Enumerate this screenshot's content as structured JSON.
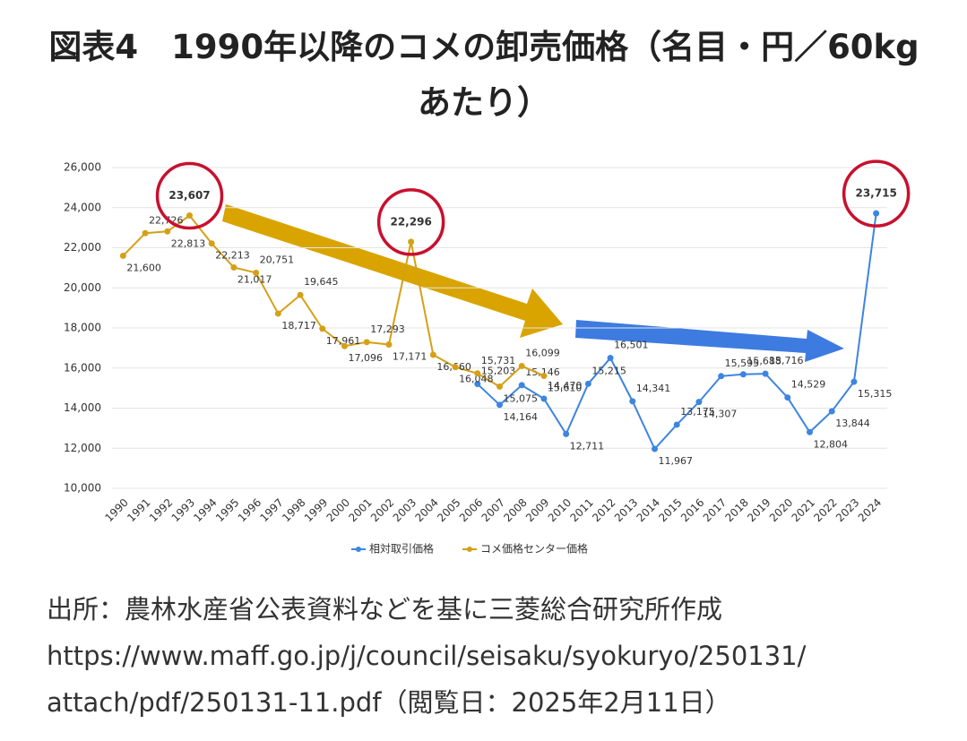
{
  "chart_data": {
    "type": "line",
    "title": "図表4　1990年以降のコメの卸売価格（名目・円／60kgあたり）",
    "source": [
      "出所：農林水産省公表資料などを基に三菱総合研究所作成",
      "https://www.maff.go.jp/j/council/seisaku/syokuryo/250131/",
      "attach/pdf/250131-11.pdf（閲覧日：2025年2月11日）"
    ],
    "categories": [
      "1990",
      "1991",
      "1992",
      "1993",
      "1994",
      "1995",
      "1996",
      "1997",
      "1998",
      "1999",
      "2000",
      "2001",
      "2002",
      "2003",
      "2004",
      "2005",
      "2006",
      "2007",
      "2008",
      "2009",
      "2010",
      "2011",
      "2012",
      "2013",
      "2014",
      "2015",
      "2016",
      "2017",
      "2018",
      "2019",
      "2020",
      "2021",
      "2022",
      "2023",
      "2024"
    ],
    "series": [
      {
        "name": "相対取引価格",
        "color": "#3d85e0",
        "values": [
          null,
          null,
          null,
          null,
          null,
          null,
          null,
          null,
          null,
          null,
          null,
          null,
          null,
          null,
          null,
          null,
          15203,
          14164,
          15146,
          14470,
          12711,
          15215,
          16501,
          14341,
          11967,
          13175,
          14307,
          15595,
          15688,
          15716,
          14529,
          12804,
          13844,
          15315,
          23715
        ],
        "value_labels": [
          null,
          null,
          null,
          null,
          null,
          null,
          null,
          null,
          null,
          null,
          null,
          null,
          null,
          null,
          null,
          null,
          "15,203",
          "14,164",
          "15,146",
          "14,470",
          "12,711",
          "15,215",
          "16,501",
          "14,341",
          "11,967",
          "13,175",
          "14,307",
          "15,595",
          "15,688",
          "15,716",
          "14,529",
          "12,804",
          "13,844",
          "15,315",
          "23,715"
        ]
      },
      {
        "name": "コメ価格センター価格",
        "color": "#d4a017",
        "values": [
          21600,
          22726,
          22813,
          23607,
          22213,
          21017,
          20751,
          18717,
          19645,
          17961,
          17096,
          17293,
          17171,
          22296,
          16660,
          16048,
          15731,
          15075,
          16099,
          15610,
          null,
          null,
          null,
          null,
          null,
          null,
          null,
          null,
          null,
          null,
          null,
          null,
          null,
          null,
          null
        ],
        "value_labels": [
          "21,600",
          "22,726",
          "22,813",
          "23,607",
          "22,213",
          "21,017",
          "20,751",
          "18,717",
          "19,645",
          "17,961",
          "17,096",
          "17,293",
          "17,171",
          "22,296",
          "16,660",
          "16,048",
          "15,731",
          "15,075",
          "16,099",
          "15,610",
          null,
          null,
          null,
          null,
          null,
          null,
          null,
          null,
          null,
          null,
          null,
          null,
          null,
          null,
          null
        ]
      }
    ],
    "ylim": [
      10000,
      26000
    ],
    "yticks": [
      {
        "value": 10000,
        "label": "10,000"
      },
      {
        "value": 12000,
        "label": "12,000"
      },
      {
        "value": 14000,
        "label": "14,000"
      },
      {
        "value": 16000,
        "label": "16,000"
      },
      {
        "value": 18000,
        "label": "18,000"
      },
      {
        "value": 20000,
        "label": "20,000"
      },
      {
        "value": 22000,
        "label": "22,000"
      },
      {
        "value": 24000,
        "label": "24,000"
      },
      {
        "value": 26000,
        "label": "26,000"
      }
    ],
    "grid": true,
    "legend": "bottom"
  }
}
